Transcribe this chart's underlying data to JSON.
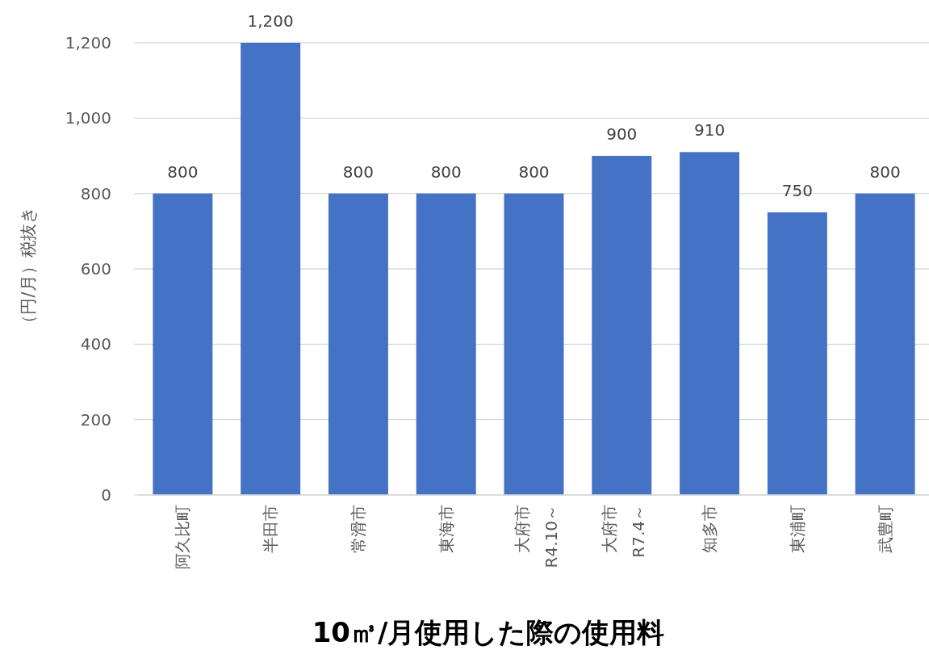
{
  "chart_data": {
    "type": "bar",
    "title": "10㎥/月使用した際の使用料",
    "ylabel": "（円/月）税抜き",
    "categories": [
      "阿久比町",
      "半田市",
      "常滑市",
      "東海市",
      "大府市\nR4.10～",
      "大府市\nR7.4～",
      "知多市",
      "東浦町",
      "武豊町"
    ],
    "values": [
      800,
      1200,
      800,
      800,
      800,
      900,
      910,
      750,
      800
    ],
    "color": "#4472c4",
    "value_labels": [
      "800",
      "1,200",
      "800",
      "800",
      "800",
      "900",
      "910",
      "750",
      "800"
    ],
    "ylim": [
      0,
      1200
    ],
    "yticks": [
      {
        "value": 0,
        "label": "0"
      },
      {
        "value": 200,
        "label": "200"
      },
      {
        "value": 400,
        "label": "400"
      },
      {
        "value": 600,
        "label": "600"
      },
      {
        "value": 800,
        "label": "800"
      },
      {
        "value": 1000,
        "label": "1,000"
      },
      {
        "value": 1200,
        "label": "1,200"
      }
    ],
    "grid": "y"
  }
}
